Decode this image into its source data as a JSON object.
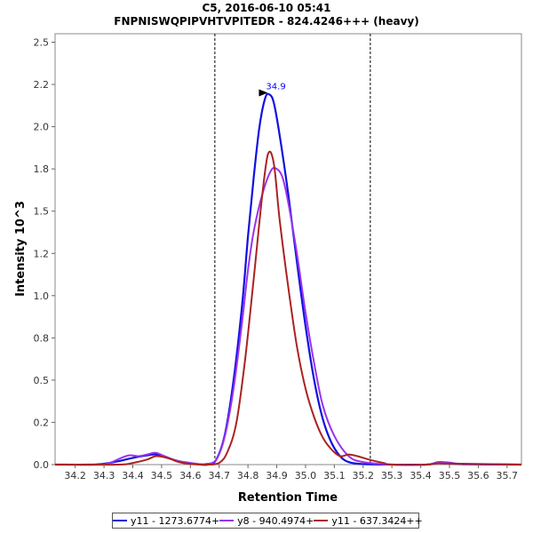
{
  "chart_data": {
    "type": "line",
    "title": "C5, 2016-06-10 05:41",
    "subtitle": "FNPNISWQPIPVHTVPITEDR - 824.4246+++ (heavy)",
    "xlabel": "Retention Time",
    "ylabel": "Intensity 10^3",
    "xlim": [
      34.13,
      35.75
    ],
    "ylim": [
      0.0,
      2.55
    ],
    "xticks": [
      "34.2",
      "34.3",
      "34.4",
      "34.5",
      "34.6",
      "34.7",
      "34.8",
      "34.9",
      "35.0",
      "35.1",
      "35.2",
      "35.3",
      "35.4",
      "35.5",
      "35.6",
      "35.7"
    ],
    "yticks": [
      "0.0",
      "0.2",
      "0.5",
      "0.8",
      "1.0",
      "1.2",
      "1.5",
      "1.8",
      "2.0",
      "2.2",
      "2.5"
    ],
    "ytick_values": [
      0.0,
      0.25,
      0.5,
      0.75,
      1.0,
      1.25,
      1.5,
      1.75,
      2.0,
      2.25,
      2.5
    ],
    "vlines": [
      34.685,
      35.225
    ],
    "annotation": {
      "text": "34.9",
      "x": 34.875,
      "y": 2.19,
      "color": "#0000ff"
    },
    "grid": false,
    "legend_position": "bottom",
    "series": [
      {
        "name": "y11 - 1273.6774+",
        "color": "#1010e0",
        "x": [
          34.13,
          34.25,
          34.3,
          34.35,
          34.4,
          34.45,
          34.48,
          34.52,
          34.57,
          34.62,
          34.66,
          34.69,
          34.72,
          34.75,
          34.78,
          34.8,
          34.82,
          34.84,
          34.86,
          34.875,
          34.89,
          34.91,
          34.94,
          34.97,
          35.0,
          35.03,
          35.06,
          35.09,
          35.12,
          35.15,
          35.2,
          35.3,
          35.42,
          35.46,
          35.5,
          35.55,
          35.75
        ],
        "y": [
          0.0,
          0.0,
          0.005,
          0.02,
          0.04,
          0.055,
          0.06,
          0.04,
          0.015,
          0.003,
          0.0,
          0.03,
          0.18,
          0.5,
          0.95,
          1.35,
          1.7,
          2.0,
          2.17,
          2.19,
          2.14,
          1.95,
          1.6,
          1.2,
          0.82,
          0.5,
          0.27,
          0.13,
          0.05,
          0.015,
          0.003,
          0.0,
          0.0,
          0.01,
          0.008,
          0.002,
          0.0
        ]
      },
      {
        "name": "y8 - 940.4974+",
        "color": "#9933ee",
        "x": [
          34.13,
          34.28,
          34.32,
          34.36,
          34.39,
          34.42,
          34.45,
          34.48,
          34.51,
          34.55,
          34.6,
          34.65,
          34.69,
          34.72,
          34.75,
          34.78,
          34.8,
          34.82,
          34.85,
          34.88,
          34.9,
          34.92,
          34.94,
          34.97,
          35.0,
          35.03,
          35.06,
          35.1,
          35.15,
          35.2,
          35.3,
          35.42,
          35.46,
          35.5,
          35.55,
          35.75
        ],
        "y": [
          0.0,
          0.0,
          0.01,
          0.04,
          0.055,
          0.05,
          0.06,
          0.07,
          0.05,
          0.025,
          0.01,
          0.003,
          0.03,
          0.17,
          0.45,
          0.85,
          1.15,
          1.38,
          1.6,
          1.74,
          1.75,
          1.7,
          1.55,
          1.25,
          0.9,
          0.6,
          0.35,
          0.17,
          0.05,
          0.015,
          0.0,
          0.0,
          0.015,
          0.012,
          0.004,
          0.0
        ]
      },
      {
        "name": "y11 - 637.3424++",
        "color": "#aa2222",
        "x": [
          34.13,
          34.35,
          34.4,
          34.45,
          34.48,
          34.52,
          34.56,
          34.6,
          34.65,
          34.7,
          34.73,
          34.76,
          34.79,
          34.82,
          34.85,
          34.87,
          34.89,
          34.91,
          34.94,
          34.97,
          35.0,
          35.03,
          35.06,
          35.09,
          35.12,
          35.15,
          35.18,
          35.22,
          35.27,
          35.3,
          35.42,
          35.46,
          35.5,
          35.75
        ],
        "y": [
          0.0,
          0.0,
          0.01,
          0.03,
          0.05,
          0.04,
          0.015,
          0.004,
          0.0,
          0.01,
          0.08,
          0.25,
          0.62,
          1.1,
          1.6,
          1.84,
          1.78,
          1.45,
          1.05,
          0.7,
          0.45,
          0.28,
          0.16,
          0.09,
          0.05,
          0.06,
          0.05,
          0.03,
          0.01,
          0.0,
          0.0,
          0.008,
          0.006,
          0.0
        ]
      }
    ]
  }
}
